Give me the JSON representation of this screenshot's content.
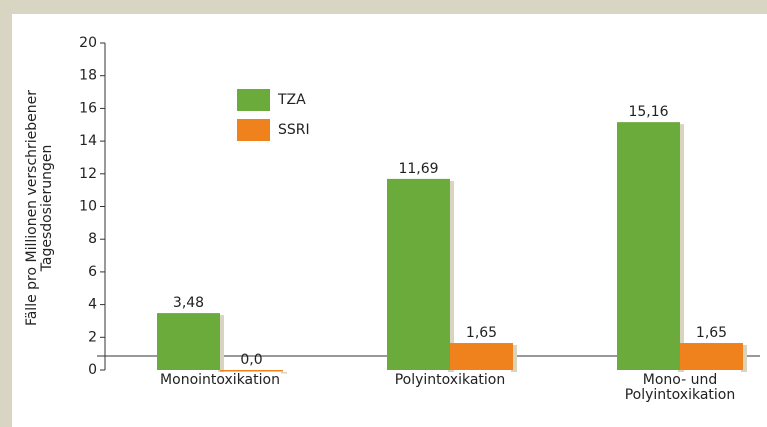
{
  "chart_data": {
    "type": "bar",
    "y_label": "Fälle pro Millionen verschriebener Tagesdosierungen",
    "categories": [
      "Monointoxikation",
      "Polyintoxikation",
      "Mono- und Polyintoxikation"
    ],
    "series": [
      {
        "name": "TZA",
        "color": "#6aab3c",
        "values": [
          3.48,
          11.69,
          15.16
        ],
        "value_labels": [
          "3,48",
          "11,69",
          "15,16"
        ]
      },
      {
        "name": "SSRI",
        "color": "#f0821e",
        "values": [
          0,
          1.65,
          1.65
        ],
        "value_labels": [
          "0,0",
          "1,65",
          "1,65"
        ]
      }
    ],
    "ylim": [
      0,
      20
    ],
    "yticks": [
      0,
      2,
      4,
      6,
      8,
      10,
      12,
      14,
      16,
      18,
      20
    ]
  }
}
